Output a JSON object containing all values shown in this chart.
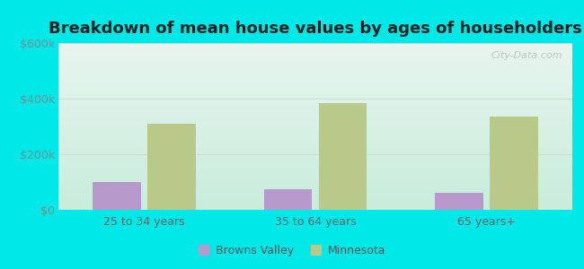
{
  "title": "Breakdown of mean house values by ages of householders",
  "categories": [
    "25 to 34 years",
    "35 to 64 years",
    "65 years+"
  ],
  "browns_valley": [
    100000,
    75000,
    60000
  ],
  "minnesota": [
    310000,
    385000,
    335000
  ],
  "ylim": [
    0,
    600000
  ],
  "yticks": [
    0,
    200000,
    400000,
    600000
  ],
  "ytick_labels": [
    "$0",
    "$200k",
    "$400k",
    "$600k"
  ],
  "bar_color_bv": "#b899cc",
  "bar_color_mn": "#b8c98a",
  "background_outer": "#00e8e8",
  "legend_label_bv": "Browns Valley",
  "legend_label_mn": "Minnesota",
  "title_fontsize": 13,
  "tick_fontsize": 9,
  "bar_width": 0.28,
  "watermark": "City-Data.com"
}
